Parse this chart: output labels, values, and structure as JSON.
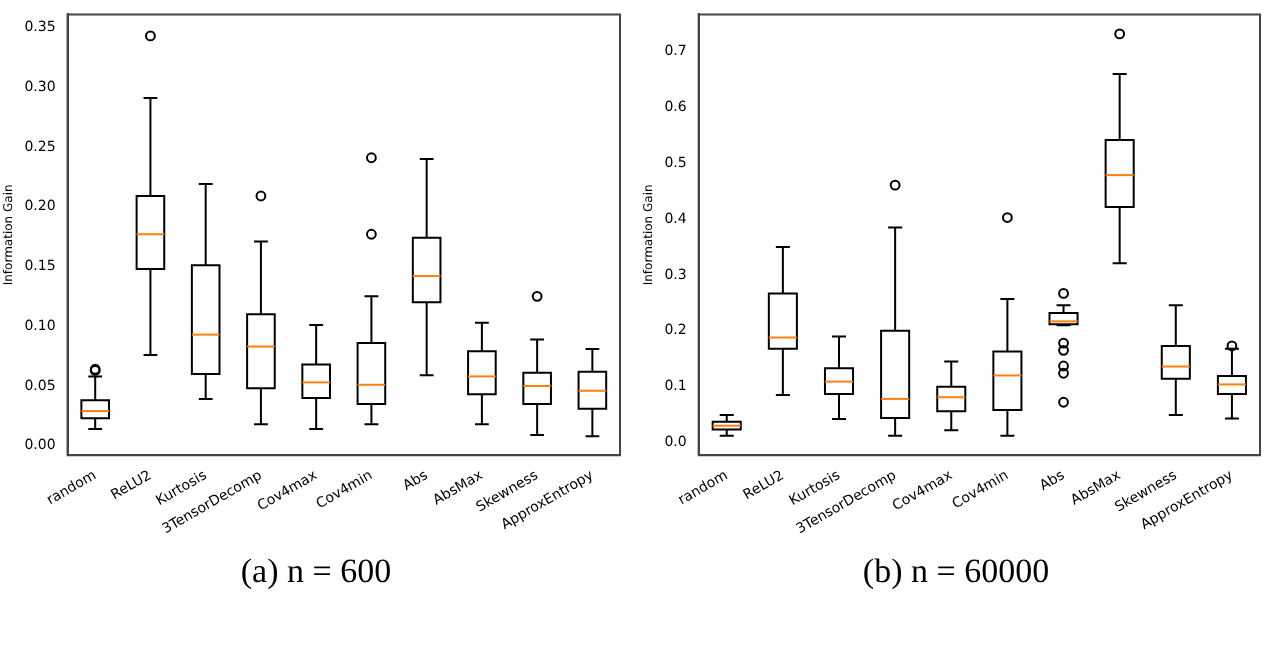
{
  "chart_data": [
    {
      "type": "box",
      "title": "(a) n = 600",
      "ylabel": "Information Gain",
      "categories": [
        "random",
        "ReLU2",
        "Kurtosis",
        "3TensorDecomp",
        "Cov4max",
        "Cov4min",
        "Abs",
        "AbsMax",
        "Skewness",
        "ApproxEntropy"
      ],
      "boxes": [
        {
          "low": 0.014,
          "q1": 0.023,
          "median": 0.029,
          "q3": 0.038,
          "high": 0.058,
          "outliers": [
            0.063,
            0.064
          ]
        },
        {
          "low": 0.076,
          "q1": 0.148,
          "median": 0.177,
          "q3": 0.209,
          "high": 0.291,
          "outliers": [
            0.343
          ]
        },
        {
          "low": 0.039,
          "q1": 0.06,
          "median": 0.093,
          "q3": 0.151,
          "high": 0.219
        },
        {
          "low": 0.018,
          "q1": 0.048,
          "median": 0.083,
          "q3": 0.11,
          "high": 0.171,
          "outliers": [
            0.209
          ]
        },
        {
          "low": 0.014,
          "q1": 0.04,
          "median": 0.053,
          "q3": 0.068,
          "high": 0.101
        },
        {
          "low": 0.018,
          "q1": 0.035,
          "median": 0.051,
          "q3": 0.086,
          "high": 0.125,
          "outliers": [
            0.177,
            0.241
          ]
        },
        {
          "low": 0.059,
          "q1": 0.12,
          "median": 0.142,
          "q3": 0.174,
          "high": 0.24
        },
        {
          "low": 0.018,
          "q1": 0.043,
          "median": 0.058,
          "q3": 0.079,
          "high": 0.103
        },
        {
          "low": 0.009,
          "q1": 0.035,
          "median": 0.05,
          "q3": 0.061,
          "high": 0.089,
          "outliers": [
            0.125
          ]
        },
        {
          "low": 0.008,
          "q1": 0.031,
          "median": 0.046,
          "q3": 0.062,
          "high": 0.081
        }
      ],
      "ylim": [
        -0.008,
        0.361
      ],
      "yticks": [
        {
          "value": 0,
          "label": "0.00"
        },
        0.05,
        {
          "value": 0.1,
          "label": "0.10"
        },
        0.15,
        {
          "value": 0.2,
          "label": "0.20"
        },
        0.25,
        {
          "value": 0.3,
          "label": "0.30"
        },
        0.35
      ],
      "grid": false
    },
    {
      "type": "box",
      "title": "(b) n = 60000",
      "ylabel": "Information Gain",
      "categories": [
        "random",
        "ReLU2",
        "Kurtosis",
        "3TensorDecomp",
        "Cov4max",
        "Cov4min",
        "Abs",
        "AbsMax",
        "Skewness",
        "ApproxEntropy"
      ],
      "boxes": [
        {
          "low": 0.012,
          "q1": 0.023,
          "median": 0.03,
          "q3": 0.037,
          "high": 0.049
        },
        {
          "low": 0.085,
          "q1": 0.168,
          "median": 0.188,
          "q3": 0.267,
          "high": 0.35
        },
        {
          "low": 0.042,
          "q1": 0.087,
          "median": 0.109,
          "q3": 0.133,
          "high": 0.19
        },
        {
          "low": 0.012,
          "q1": 0.044,
          "median": 0.078,
          "q3": 0.2,
          "high": 0.385,
          "outliers": [
            0.461
          ]
        },
        {
          "low": 0.022,
          "q1": 0.056,
          "median": 0.081,
          "q3": 0.1,
          "high": 0.145
        },
        {
          "low": 0.012,
          "q1": 0.058,
          "median": 0.12,
          "q3": 0.163,
          "high": 0.257,
          "outliers": [
            0.403
          ]
        },
        {
          "low": 0.21,
          "q1": 0.212,
          "median": 0.217,
          "q3": 0.232,
          "high": 0.246,
          "outliers": [
            0.267,
            0.178,
            0.165,
            0.137,
            0.124,
            0.072
          ]
        },
        {
          "low": 0.321,
          "q1": 0.422,
          "median": 0.479,
          "q3": 0.542,
          "high": 0.66,
          "outliers": [
            0.732
          ]
        },
        {
          "low": 0.049,
          "q1": 0.114,
          "median": 0.136,
          "q3": 0.173,
          "high": 0.246
        },
        {
          "low": 0.043,
          "q1": 0.087,
          "median": 0.104,
          "q3": 0.119,
          "high": 0.168,
          "outliers": [
            0.173
          ]
        }
      ],
      "ylim": [
        -0.023,
        0.767
      ],
      "yticks": [
        {
          "value": 0,
          "label": "0.0"
        },
        0.1,
        0.2,
        0.3,
        0.4,
        0.5,
        0.6,
        0.7
      ],
      "grid": false
    }
  ]
}
